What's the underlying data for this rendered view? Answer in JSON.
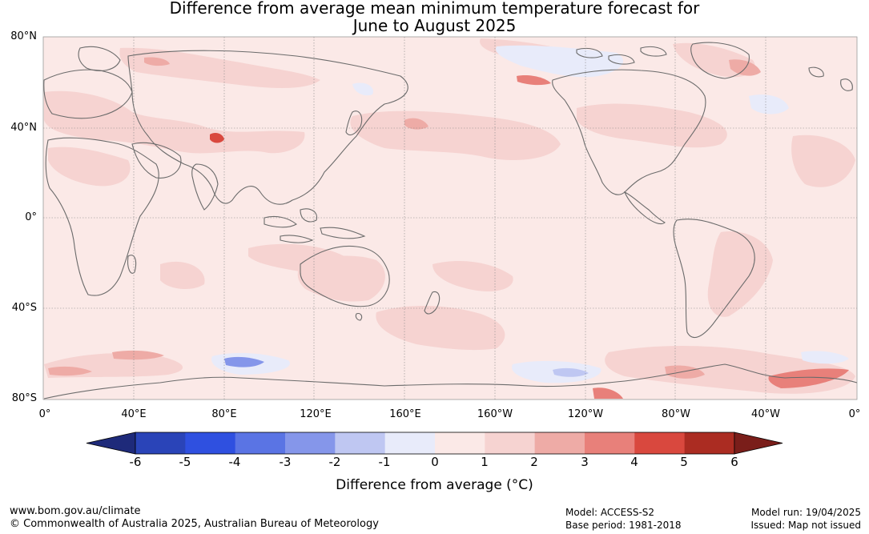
{
  "title_line1": "Difference from average mean minimum temperature forecast for",
  "title_line2": "June to August 2025",
  "lat_labels": [
    "80°N",
    "40°N",
    "0°",
    "40°S",
    "80°S"
  ],
  "lon_labels": [
    "0°",
    "40°E",
    "80°E",
    "120°E",
    "160°E",
    "160°W",
    "120°W",
    "80°W",
    "40°W",
    "0°"
  ],
  "colorbar": {
    "title": "Difference from average (°C)",
    "ticks": [
      "-6",
      "-5",
      "-4",
      "-3",
      "-2",
      "-1",
      "0",
      "1",
      "2",
      "3",
      "4",
      "5",
      "6"
    ],
    "colors": [
      "#1e2a7a",
      "#2a44b8",
      "#2f50e0",
      "#5a74e4",
      "#8596ea",
      "#bfc7f2",
      "#e8ebfa",
      "#fbe9e7",
      "#f6d3d1",
      "#eeaba6",
      "#e8807a",
      "#d9483e",
      "#ab2c22",
      "#7a1e1a"
    ]
  },
  "footer": {
    "url": "www.bom.gov.au/climate",
    "copyright": "© Commonwealth of Australia 2025, Australian Bureau of Meteorology",
    "model": "Model: ACCESS-S2",
    "base_period": "Base period: 1981-2018",
    "model_run": "Model run: 19/04/2025",
    "issued": "Issued: Map not issued"
  },
  "colors": {
    "background_anomaly": "#fbe9e7",
    "coastline": "#6b6b6b",
    "gridline": "#888888"
  }
}
